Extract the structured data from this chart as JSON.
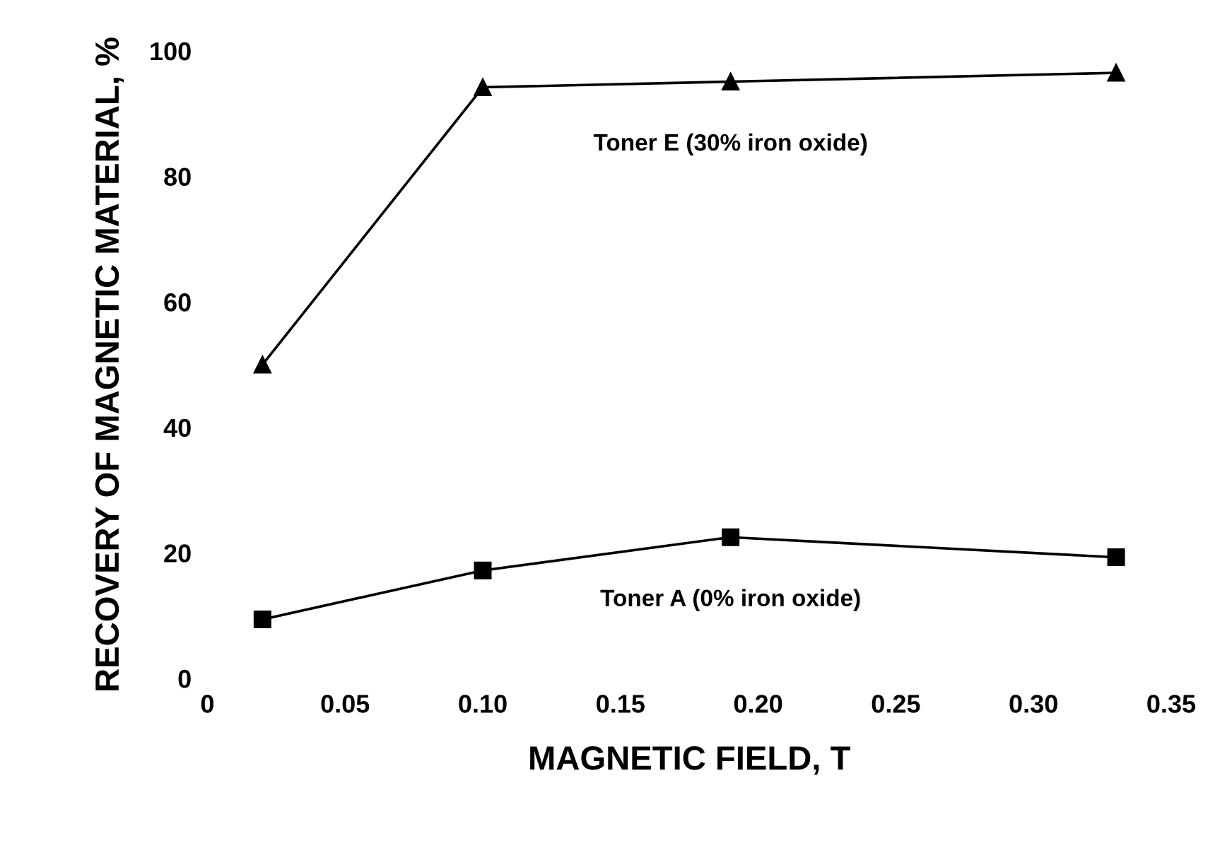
{
  "chart_data": {
    "type": "line",
    "xlabel": "MAGNETIC FIELD, T",
    "ylabel": "RECOVERY OF MAGNETIC MATERIAL, %",
    "x": [
      0.02,
      0.1,
      0.19,
      0.33
    ],
    "series": [
      {
        "name": "Toner E (30% iron oxide)",
        "color": "#000000",
        "marker": "triangle",
        "values": [
          50,
          94.2,
          95.1,
          96.5
        ]
      },
      {
        "name": "Toner A (0% iron oxide)",
        "color": "#000000",
        "marker": "square",
        "values": [
          9.4,
          17.2,
          22.5,
          19.3
        ]
      }
    ],
    "xlim": [
      0,
      0.35
    ],
    "ylim": [
      0,
      100
    ],
    "xticks": [
      0,
      0.05,
      {
        "value": 0.1,
        "label": "0.10"
      },
      0.15,
      {
        "value": 0.2,
        "label": "0.20"
      },
      0.25,
      {
        "value": 0.3,
        "label": "0.30"
      },
      0.35
    ],
    "yticks": [
      0,
      20,
      40,
      60,
      80,
      100
    ],
    "grid": false,
    "line_style": "solid"
  }
}
